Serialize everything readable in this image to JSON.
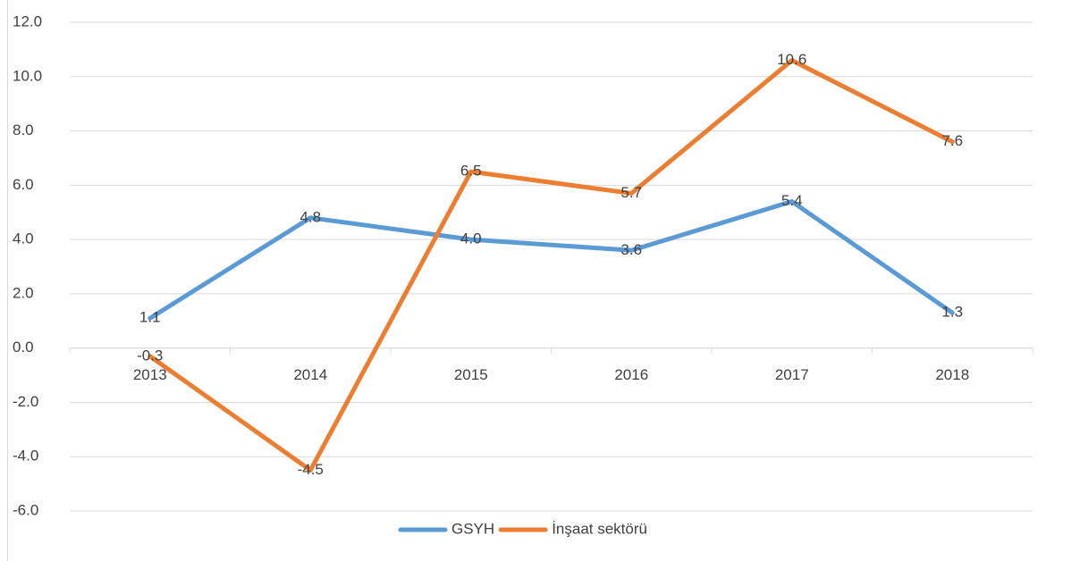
{
  "chart_data": {
    "type": "line",
    "categories": [
      "2013",
      "2014",
      "2015",
      "2016",
      "2017",
      "2018"
    ],
    "series": [
      {
        "name": "GSYH",
        "color": "#5b9bd5",
        "values": [
          1.1,
          4.8,
          4.0,
          3.6,
          5.4,
          1.3
        ],
        "value_labels": [
          "1.1",
          "4.8",
          "4.0",
          "3.6",
          "5.4",
          "1.3"
        ]
      },
      {
        "name": "İnşaat sektörü",
        "color": "#ed7d31",
        "values": [
          -0.3,
          -4.5,
          6.5,
          5.7,
          10.6,
          7.6
        ],
        "value_labels": [
          "-0.3",
          "-4.5",
          "6.5",
          "5.7",
          "10.6",
          "7.6"
        ]
      }
    ],
    "ylim": [
      -6,
      12
    ],
    "yticks": [
      {
        "value": -6,
        "label": "-6.0"
      },
      {
        "value": -4,
        "label": "-4.0"
      },
      {
        "value": -2,
        "label": "-2.0"
      },
      {
        "value": 0,
        "label": "0.0"
      },
      {
        "value": 2,
        "label": "2.0"
      },
      {
        "value": 4,
        "label": "4.0"
      },
      {
        "value": 6,
        "label": "6.0"
      },
      {
        "value": 8,
        "label": "8.0"
      },
      {
        "value": 10,
        "label": "10.0"
      },
      {
        "value": 12,
        "label": "12.0"
      }
    ],
    "grid": true,
    "legend": "bottom"
  }
}
